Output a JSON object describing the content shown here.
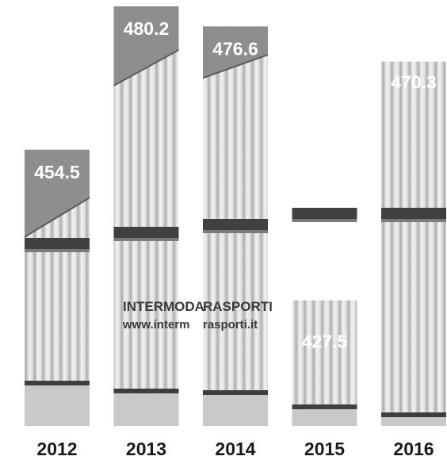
{
  "chart_data": {
    "type": "bar",
    "categories": [
      "2012",
      "2013",
      "2014",
      "2015",
      "2016"
    ],
    "values": [
      454.5,
      480.2,
      476.6,
      427.5,
      470.3
    ],
    "value_labels": [
      "454.5",
      "480.2",
      "476.6",
      "427.5",
      "470.3"
    ],
    "title": "",
    "xlabel": "",
    "ylabel": "",
    "ylim": [
      0,
      500
    ],
    "grid": false,
    "legend": "none"
  },
  "photo_text": {
    "line1": "INTERMODA",
    "line1b": "RASPORTI",
    "line2": "www.interm",
    "line2b": "rasporti.it"
  },
  "colors": {
    "sky": "#8e8e8e",
    "container": "#e6e6e6",
    "rib_dark": "#9a9a9a",
    "seam": "#404040",
    "value_text": "#ffffff",
    "year_text": "#1a1a1a"
  }
}
